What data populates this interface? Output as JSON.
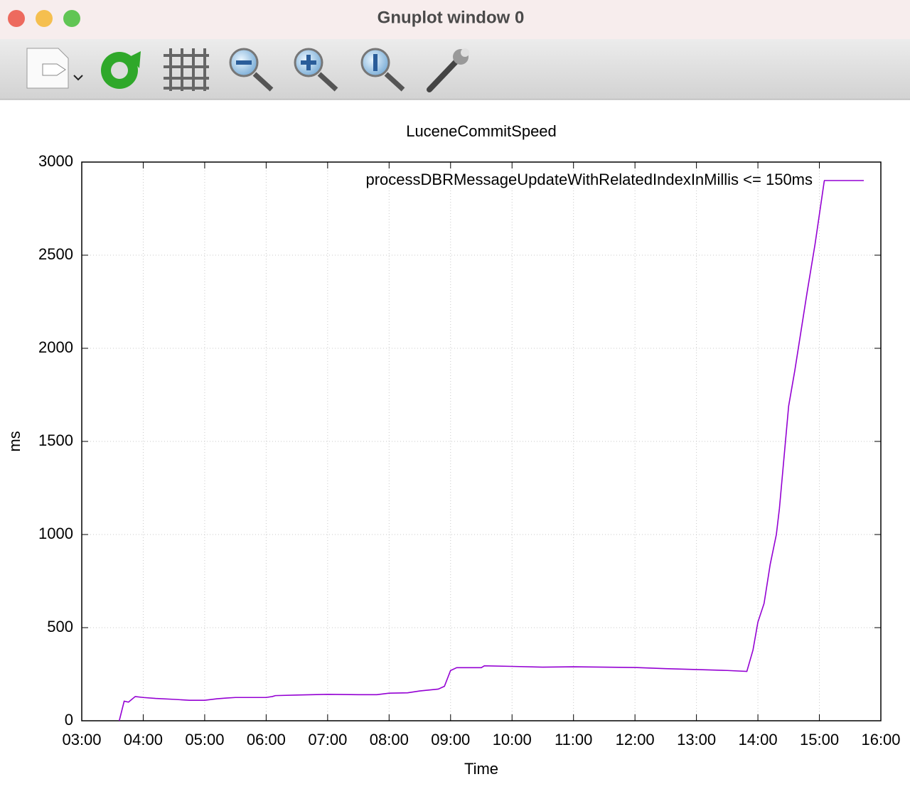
{
  "window": {
    "title": "Gnuplot window 0"
  },
  "chart_data": {
    "type": "line",
    "title": "LuceneCommitSpeed",
    "xlabel": "Time",
    "ylabel": "ms",
    "x": [
      3.61,
      3.69,
      3.76,
      3.87,
      4.0,
      4.2,
      4.5,
      4.75,
      5.0,
      5.2,
      5.35,
      5.5,
      6.0,
      6.1,
      6.15,
      6.5,
      7.0,
      7.5,
      7.8,
      8.0,
      8.3,
      8.5,
      8.8,
      8.9,
      9.0,
      9.1,
      9.5,
      9.55,
      10.0,
      10.5,
      11.0,
      11.5,
      12.0,
      12.5,
      13.0,
      13.5,
      13.82,
      13.92,
      14.0,
      14.1,
      14.2,
      14.3,
      14.35,
      14.5,
      14.6,
      14.8,
      14.93,
      15.08
    ],
    "series": [
      {
        "name": "processDBRMessageUpdateWithRelatedIndexInMillis <= 150ms",
        "color": "#9400d3",
        "values": [
          0,
          105,
          100,
          130,
          125,
          120,
          115,
          110,
          110,
          118,
          122,
          125,
          125,
          130,
          135,
          138,
          142,
          140,
          140,
          148,
          150,
          160,
          170,
          185,
          270,
          285,
          285,
          295,
          292,
          288,
          290,
          288,
          286,
          280,
          275,
          270,
          265,
          380,
          530,
          630,
          840,
          1000,
          1140,
          1690,
          1880,
          2300,
          2560,
          2900
        ]
      }
    ],
    "xlim": [
      3,
      16
    ],
    "xticks": [
      {
        "value": 3,
        "label": "03:00"
      },
      {
        "value": 4,
        "label": "04:00"
      },
      {
        "value": 5,
        "label": "05:00"
      },
      {
        "value": 6,
        "label": "06:00"
      },
      {
        "value": 7,
        "label": "07:00"
      },
      {
        "value": 8,
        "label": "08:00"
      },
      {
        "value": 9,
        "label": "09:00"
      },
      {
        "value": 10,
        "label": "10:00"
      },
      {
        "value": 11,
        "label": "11:00"
      },
      {
        "value": 12,
        "label": "12:00"
      },
      {
        "value": 13,
        "label": "13:00"
      },
      {
        "value": 14,
        "label": "14:00"
      },
      {
        "value": 15,
        "label": "15:00"
      },
      {
        "value": 16,
        "label": "16:00"
      }
    ],
    "ylim": [
      0,
      3000
    ],
    "yticks": [
      0,
      500,
      1000,
      1500,
      2000,
      2500,
      3000
    ],
    "grid": true,
    "legend": "top-right"
  }
}
